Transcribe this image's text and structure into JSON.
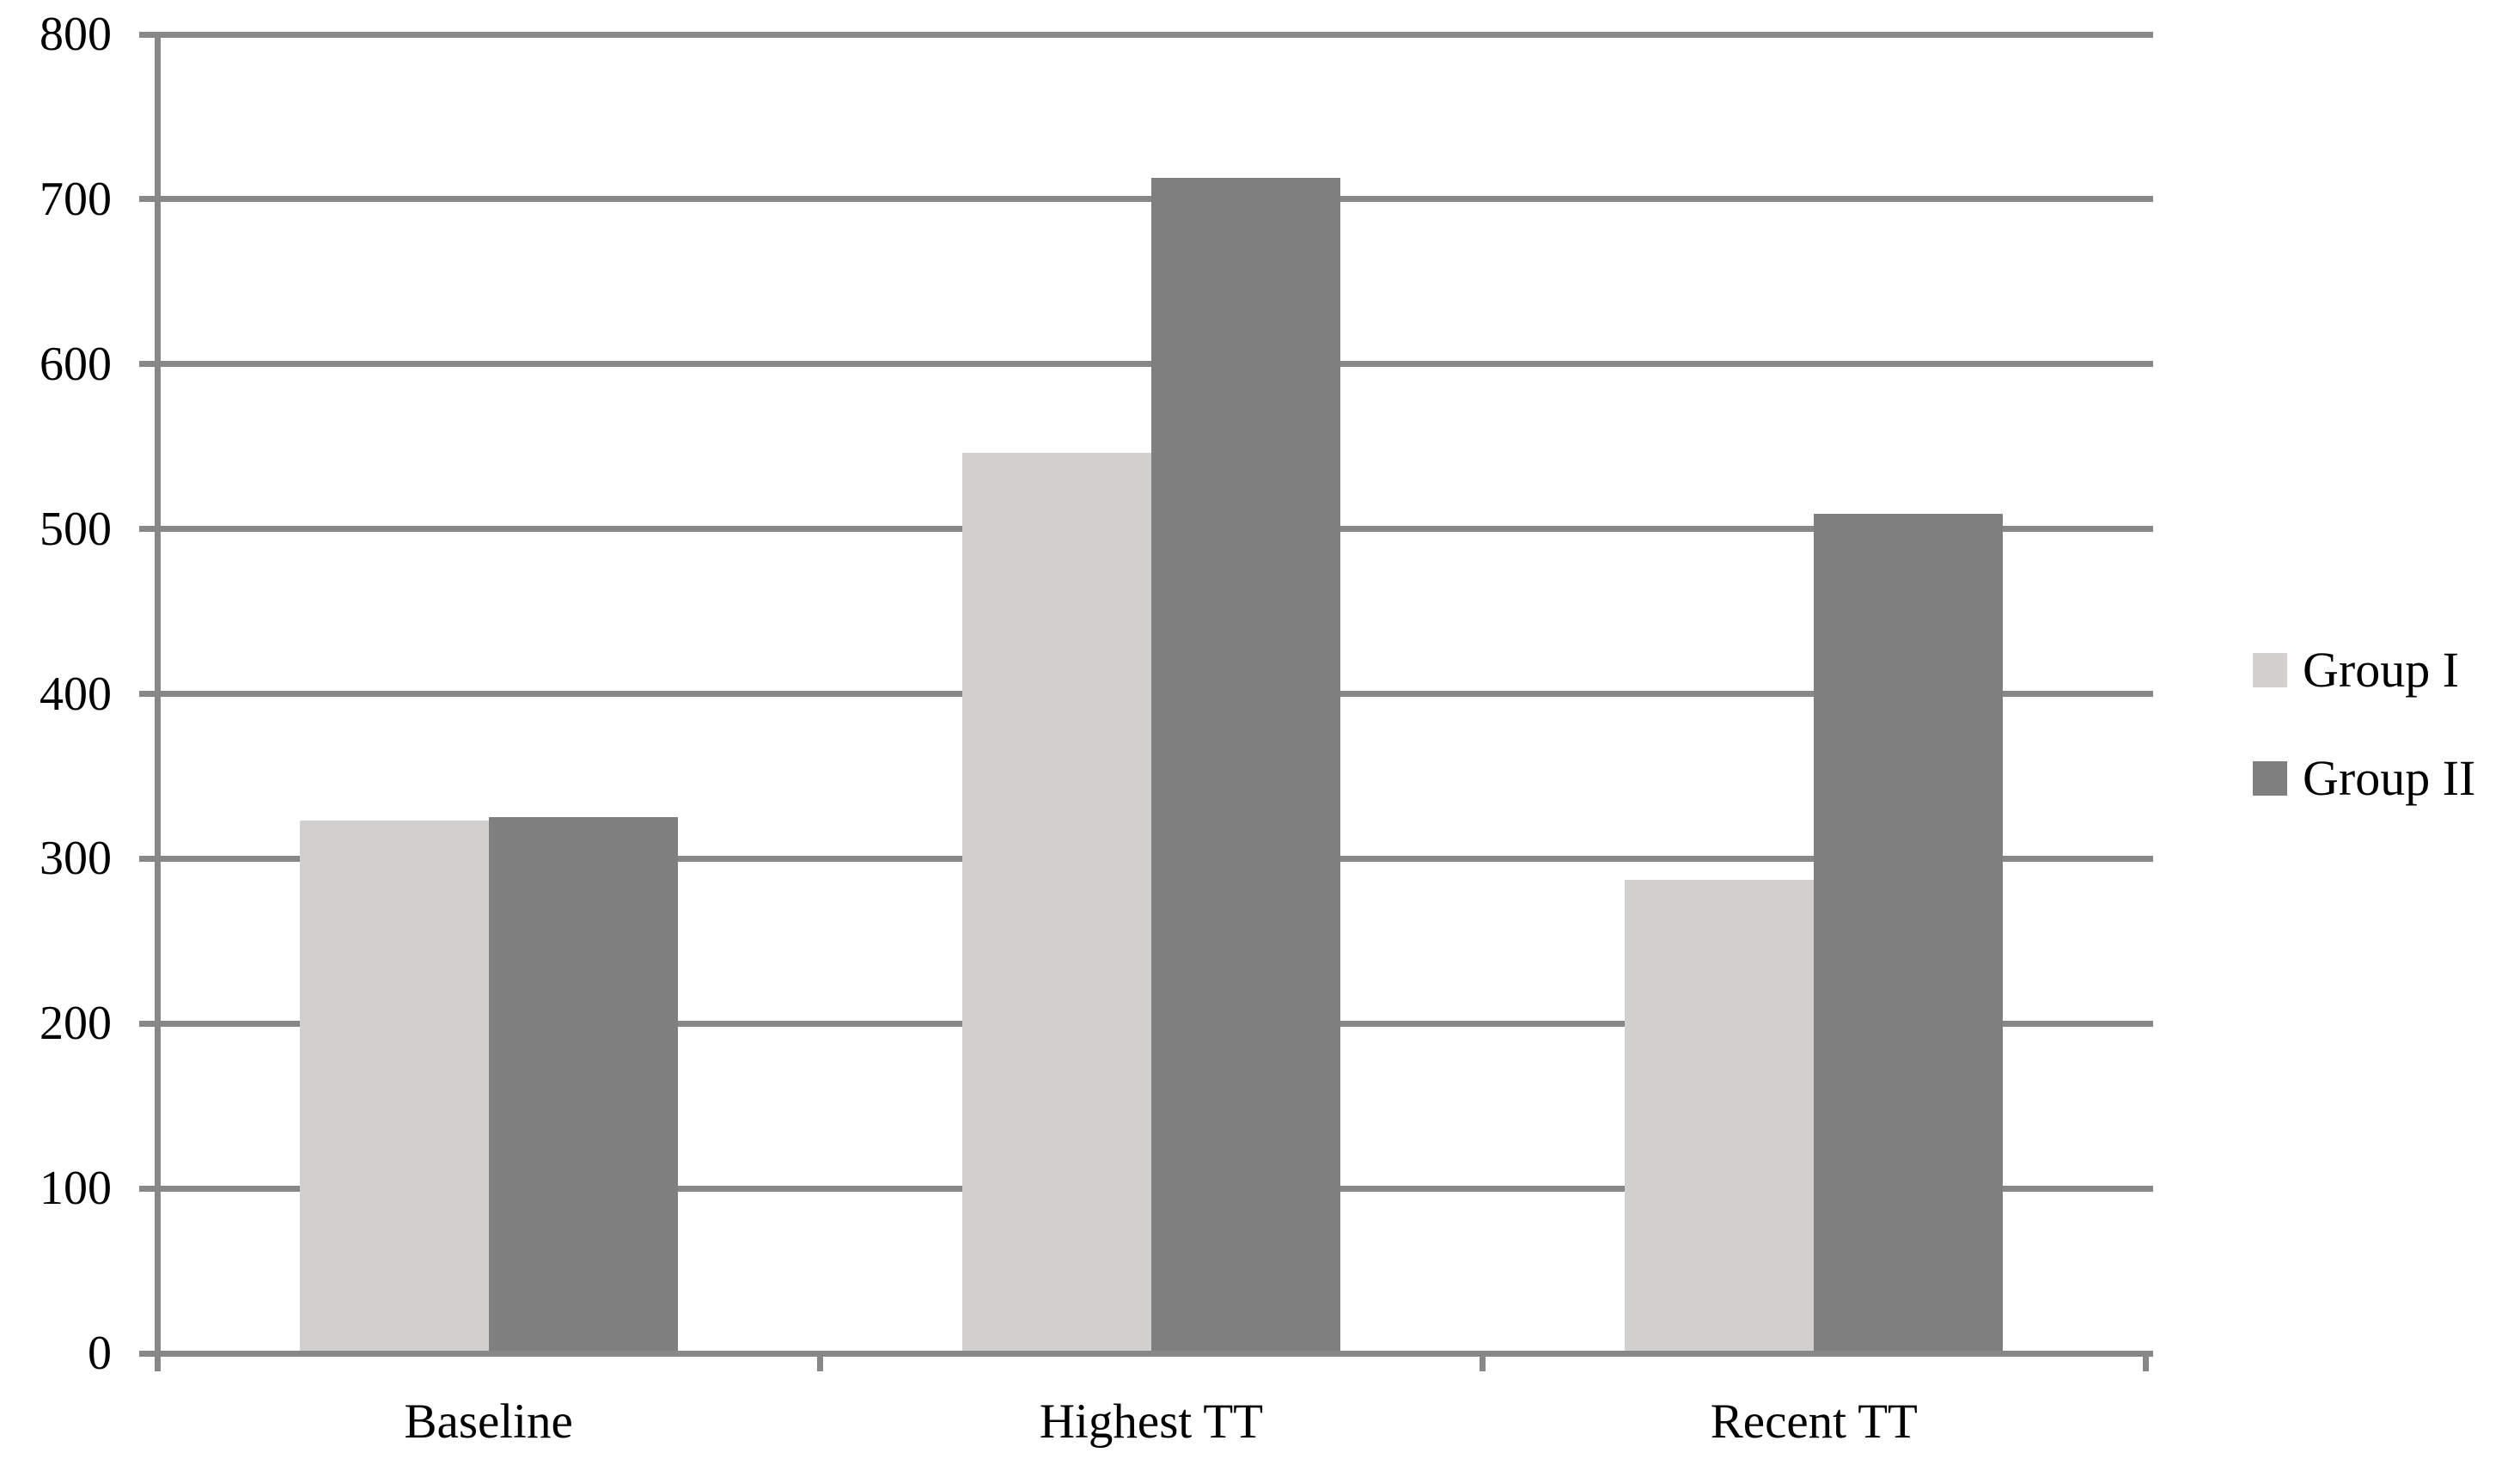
{
  "chart_data": {
    "type": "bar",
    "title": "",
    "xlabel": "",
    "ylabel": "",
    "categories": [
      "Baseline",
      "Highest TT",
      "Recent TT"
    ],
    "series": [
      {
        "name": "Group I",
        "color": "#d1d0ce",
        "values": [
          323,
          546,
          287
        ]
      },
      {
        "name": "Group II",
        "color": "#7f7f7f",
        "values": [
          325,
          713,
          509
        ]
      }
    ],
    "ylim": [
      0,
      800
    ],
    "ytick_step": 100,
    "ytick_labels": [
      "0",
      "100",
      "200",
      "300",
      "400",
      "500",
      "600",
      "700",
      "800"
    ],
    "grid": true,
    "gridline_color": "#878787",
    "axis_color": "#878787",
    "text_color": "#000000",
    "background_color": "#ffffff",
    "legend_position": "right-middle",
    "legend_entries": [
      "Group I",
      "Group II"
    ],
    "bar_style": "grouped vertical bars, two bars per category, no borders"
  }
}
